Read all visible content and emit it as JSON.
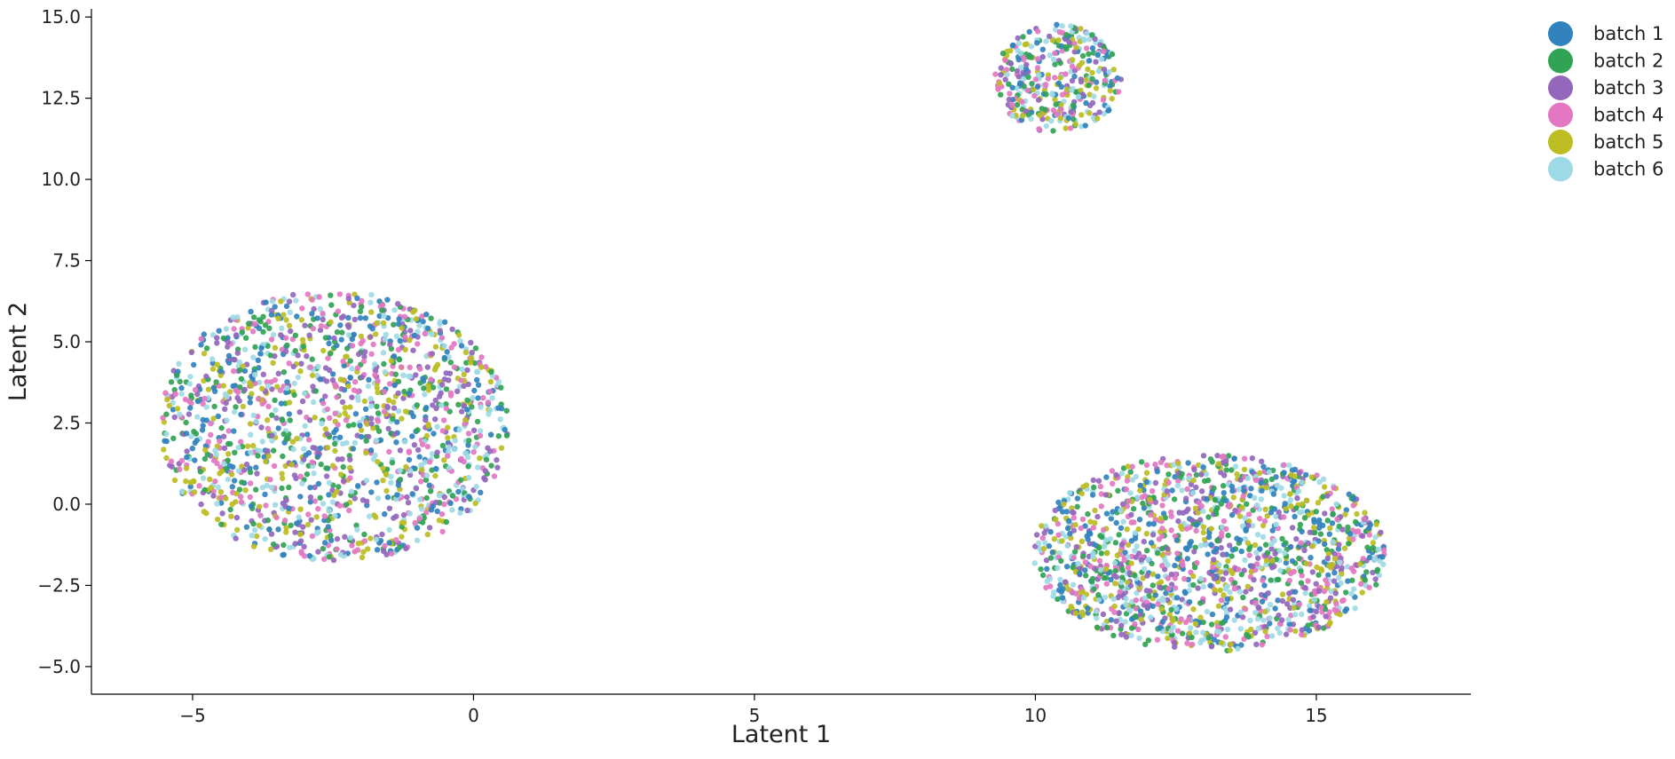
{
  "chart_data": {
    "type": "scatter",
    "title": "",
    "xlabel": "Latent 1",
    "ylabel": "Latent 2",
    "xlim": [
      -6.8,
      17.75
    ],
    "ylim": [
      -5.85,
      15.25
    ],
    "xticks": [
      -5,
      0,
      5,
      10,
      15
    ],
    "xtick_labels": [
      "−5",
      "0",
      "5",
      "10",
      "15"
    ],
    "yticks": [
      -5.0,
      -2.5,
      0.0,
      2.5,
      5.0,
      7.5,
      10.0,
      12.5,
      15.0
    ],
    "ytick_labels": [
      "−5.0",
      "−2.5",
      "0.0",
      "2.5",
      "5.0",
      "7.5",
      "10.0",
      "12.5",
      "15.0"
    ],
    "grid": false,
    "legend_position": "outside-top-right",
    "series": [
      {
        "name": "batch 1",
        "color": "#3182bd"
      },
      {
        "name": "batch 2",
        "color": "#31a354"
      },
      {
        "name": "batch 3",
        "color": "#9467bd"
      },
      {
        "name": "batch 4",
        "color": "#e377c2"
      },
      {
        "name": "batch 5",
        "color": "#bcbd22"
      },
      {
        "name": "batch 6",
        "color": "#9edae5"
      }
    ],
    "clusters": [
      {
        "center": [
          -2.5,
          2.4
        ],
        "x_range": [
          -5.7,
          0.7
        ],
        "y_range": [
          -1.9,
          6.6
        ],
        "points_per_series": 260
      },
      {
        "center": [
          10.4,
          13.1
        ],
        "x_range": [
          9.3,
          11.6
        ],
        "y_range": [
          11.1,
          14.5
        ],
        "points_per_series": 60
      },
      {
        "center": [
          13.1,
          -1.5
        ],
        "x_range": [
          10.2,
          16.6
        ],
        "y_range": [
          -4.8,
          1.4
        ],
        "points_per_series": 260
      }
    ]
  }
}
